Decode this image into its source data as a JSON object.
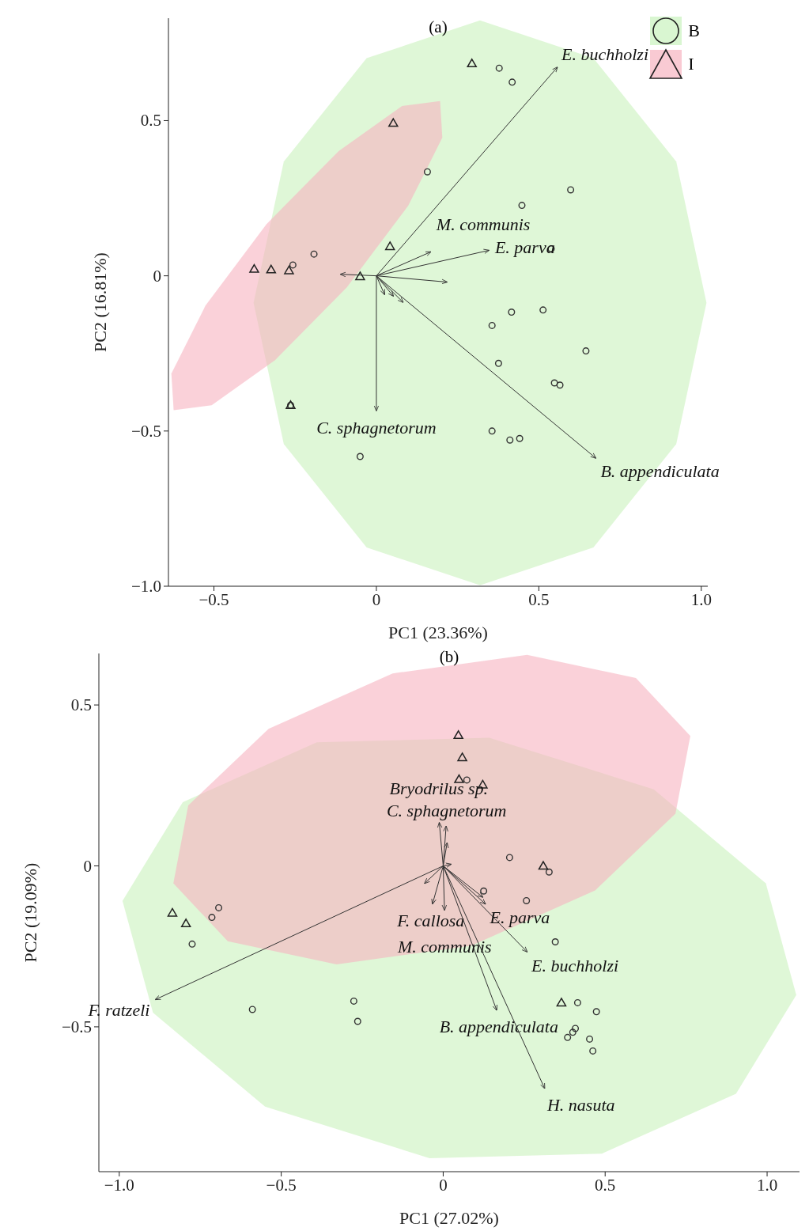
{
  "chart_data": [
    {
      "type": "scatter",
      "title": "(a)",
      "xlabel": "PC1 (23.36%)",
      "ylabel": "PC2 (16.81%)",
      "xlim": [
        -0.64,
        1.02
      ],
      "ylim": [
        -1.0,
        0.83
      ],
      "xticks": [
        {
          "value": -0.5,
          "label": "−0.5"
        },
        {
          "value": 0,
          "label": "0"
        },
        {
          "value": 0.5,
          "label": "0.5"
        },
        {
          "value": 1,
          "label": "1.0"
        }
      ],
      "yticks": [
        {
          "value": -1,
          "label": "−1.0"
        },
        {
          "value": -0.5,
          "label": "−0.5"
        },
        {
          "value": 0,
          "label": "0"
        },
        {
          "value": 0.5,
          "label": "0.5"
        }
      ],
      "grid": false,
      "legend": "top right",
      "series": [
        {
          "type": "area",
          "name": "B",
          "color": "#c9f2bd",
          "x": [
            1.016,
            0.923,
            0.668,
            0.319,
            -0.03,
            -0.285,
            -0.378,
            -0.285,
            -0.03,
            0.319,
            0.668,
            0.923
          ],
          "values": [
            -0.087,
            0.368,
            0.701,
            0.823,
            0.701,
            0.368,
            -0.087,
            -0.542,
            -0.875,
            -0.997,
            -0.875,
            -0.542
          ]
        },
        {
          "type": "area",
          "name": "I",
          "color": "#f7b3c0",
          "x": [
            0.196,
            0.079,
            -0.116,
            -0.338,
            -0.526,
            -0.631,
            -0.624,
            -0.507,
            -0.312,
            -0.091,
            0.098,
            0.203
          ],
          "values": [
            0.563,
            0.547,
            0.402,
            0.167,
            -0.096,
            -0.315,
            -0.433,
            -0.417,
            -0.272,
            -0.037,
            0.226,
            0.445
          ]
        },
        {
          "type": "line",
          "color": "#333333",
          "x": [
            0,
            0.557
          ],
          "values": [
            0,
            0.672
          ]
        },
        {
          "type": "line",
          "color": "#333333",
          "x": [
            0,
            0.346
          ],
          "values": [
            0,
            0.082
          ]
        },
        {
          "type": "line",
          "color": "#333333",
          "x": [
            0,
            0.167
          ],
          "values": [
            0,
            0.077
          ]
        },
        {
          "type": "line",
          "color": "#333333",
          "x": [
            0,
            0.0
          ],
          "values": [
            0,
            -0.434
          ]
        },
        {
          "type": "line",
          "color": "#333333",
          "x": [
            0,
            0.675
          ],
          "values": [
            0,
            -0.587
          ]
        },
        {
          "type": "line",
          "color": "#333333",
          "x": [
            0,
            -0.11
          ],
          "values": [
            0,
            0.005
          ]
        },
        {
          "type": "line",
          "color": "#333333",
          "x": [
            0,
            0.217
          ],
          "values": [
            0,
            -0.02
          ]
        },
        {
          "type": "line",
          "color": "#333333",
          "x": [
            0,
            0.025
          ],
          "values": [
            0,
            -0.06
          ]
        },
        {
          "type": "line",
          "color": "#333333",
          "x": [
            0,
            0.052
          ],
          "values": [
            0,
            -0.065
          ]
        },
        {
          "type": "line",
          "color": "#333333",
          "x": [
            0,
            0.082
          ],
          "values": [
            0,
            -0.085
          ]
        },
        {
          "type": "scatter",
          "marker": "circle",
          "color": "#333333",
          "x": [
            0.378,
            0.418,
            0.157,
            0.598,
            0.448,
            0.538,
            -0.192,
            -0.257,
            0.513,
            0.416,
            0.356,
            0.645,
            0.376,
            0.548,
            0.565,
            -0.264,
            0.356,
            0.411,
            0.441,
            -0.05
          ],
          "values": [
            0.669,
            0.624,
            0.335,
            0.277,
            0.227,
            0.087,
            0.07,
            0.035,
            -0.11,
            -0.117,
            -0.16,
            -0.242,
            -0.282,
            -0.345,
            -0.352,
            -0.417,
            -0.5,
            -0.529,
            -0.524,
            -0.582
          ]
        },
        {
          "type": "scatter",
          "marker": "triangle",
          "color": "#222222",
          "x": [
            0.294,
            0.052,
            0.042,
            -0.376,
            -0.324,
            -0.269,
            -0.05,
            -0.264
          ],
          "values": [
            0.684,
            0.492,
            0.095,
            0.022,
            0.02,
            0.017,
            -0.002,
            -0.417
          ]
        }
      ],
      "annotations": [
        {
          "text": "E. buchholzi",
          "x": 0.557,
          "y": 0.672
        },
        {
          "text": "E. parva",
          "x": 0.346,
          "y": 0.082
        },
        {
          "text": "M. communis",
          "x": 0.167,
          "y": 0.077
        },
        {
          "text": "C. sphagnetorum",
          "x": 0.0,
          "y": -0.434
        },
        {
          "text": "B. appendiculata",
          "x": 0.675,
          "y": -0.587
        }
      ]
    },
    {
      "type": "scatter",
      "title": "(b)",
      "xlabel": "PC1 (27.02%)",
      "ylabel": "PC2 (19.09%)",
      "xlim": [
        -1.063,
        1.1
      ],
      "ylim": [
        -0.95,
        0.66
      ],
      "xticks": [
        {
          "value": -1,
          "label": "−1.0"
        },
        {
          "value": -0.5,
          "label": "−0.5"
        },
        {
          "value": 0,
          "label": "0"
        },
        {
          "value": 0.5,
          "label": "0.5"
        },
        {
          "value": 1,
          "label": "1.0"
        }
      ],
      "yticks": [
        {
          "value": -0.5,
          "label": "−0.5"
        },
        {
          "value": 0,
          "label": "0"
        },
        {
          "value": 0.5,
          "label": "0.5"
        }
      ],
      "grid": false,
      "legend": false,
      "series": [
        {
          "type": "area",
          "color": "#c9f2bd",
          "x": [
            1.09,
            0.996,
            0.65,
            0.142,
            -0.39,
            -0.804,
            -0.99,
            -0.896,
            -0.55,
            -0.042,
            0.49,
            0.904
          ],
          "values": [
            -0.401,
            -0.054,
            0.238,
            0.398,
            0.384,
            0.198,
            -0.109,
            -0.456,
            -0.748,
            -0.908,
            -0.894,
            -0.708
          ]
        },
        {
          "type": "area",
          "color": "#f7b3c0",
          "x": [
            0.763,
            0.595,
            0.259,
            -0.156,
            -0.539,
            -0.787,
            -0.833,
            -0.665,
            -0.329,
            0.086,
            0.469,
            0.717
          ],
          "values": [
            0.404,
            0.584,
            0.656,
            0.598,
            0.426,
            0.188,
            -0.054,
            -0.234,
            -0.306,
            -0.248,
            -0.076,
            0.162
          ]
        },
        {
          "type": "line",
          "color": "#333333",
          "x": [
            0,
            -0.888
          ],
          "values": [
            0,
            -0.415
          ]
        },
        {
          "type": "line",
          "color": "#333333",
          "x": [
            0,
            0.313
          ],
          "values": [
            0,
            -0.691
          ]
        },
        {
          "type": "line",
          "color": "#333333",
          "x": [
            0,
            0.165
          ],
          "values": [
            0,
            -0.448
          ]
        },
        {
          "type": "line",
          "color": "#333333",
          "x": [
            0,
            0.259
          ],
          "values": [
            0,
            -0.267
          ]
        },
        {
          "type": "line",
          "color": "#333333",
          "x": [
            0,
            0.13
          ],
          "values": [
            0,
            -0.118
          ]
        },
        {
          "type": "line",
          "color": "#333333",
          "x": [
            0,
            0.004
          ],
          "values": [
            0,
            -0.137
          ]
        },
        {
          "type": "line",
          "color": "#333333",
          "x": [
            0,
            -0.033
          ],
          "values": [
            0,
            -0.118
          ]
        },
        {
          "type": "line",
          "color": "#333333",
          "x": [
            0,
            -0.012
          ],
          "values": [
            0,
            0.134
          ]
        },
        {
          "type": "line",
          "color": "#333333",
          "x": [
            0,
            0.009
          ],
          "values": [
            0,
            0.123
          ]
        },
        {
          "type": "line",
          "color": "#333333",
          "x": [
            0,
            -0.057
          ],
          "values": [
            0,
            -0.054
          ]
        },
        {
          "type": "line",
          "color": "#333333",
          "x": [
            0,
            0.122
          ],
          "values": [
            0,
            -0.097
          ]
        },
        {
          "type": "line",
          "color": "#333333",
          "x": [
            0,
            0.012
          ],
          "values": [
            0,
            0.071
          ]
        },
        {
          "type": "line",
          "color": "#333333",
          "x": [
            0,
            0.024
          ],
          "values": [
            0,
            0.005
          ]
        },
        {
          "type": "scatter",
          "marker": "circle",
          "color": "#333333",
          "x": [
            0.073,
            0.205,
            0.327,
            0.125,
            0.257,
            -0.693,
            -0.714,
            -0.775,
            0.346,
            -0.589,
            -0.276,
            -0.264,
            0.415,
            0.473,
            0.408,
            0.4,
            0.384,
            0.452,
            0.462
          ],
          "values": [
            0.267,
            0.026,
            -0.019,
            -0.078,
            -0.108,
            -0.13,
            -0.16,
            -0.243,
            -0.236,
            -0.446,
            -0.42,
            -0.483,
            -0.425,
            -0.453,
            -0.505,
            -0.517,
            -0.533,
            -0.538,
            -0.575
          ]
        },
        {
          "type": "scatter",
          "marker": "triangle",
          "color": "#222222",
          "x": [
            0.047,
            0.059,
            0.049,
            0.122,
            0.309,
            -0.836,
            -0.794,
            0.365
          ],
          "values": [
            0.406,
            0.337,
            0.269,
            0.252,
            0.0,
            -0.146,
            -0.179,
            -0.425
          ]
        }
      ],
      "annotations": [
        {
          "text": "C. sphagnetorum",
          "x": 0.009,
          "y": 0.123
        },
        {
          "text": "Bryodrilus sp.",
          "x": -0.012,
          "y": 0.134
        },
        {
          "text": "F. callosa",
          "x": -0.033,
          "y": -0.118
        },
        {
          "text": "E. parva",
          "x": 0.13,
          "y": -0.118
        },
        {
          "text": "M. communis",
          "x": 0.004,
          "y": -0.137
        },
        {
          "text": "E. buchholzi",
          "x": 0.259,
          "y": -0.267
        },
        {
          "text": "F. ratzeli",
          "x": -0.888,
          "y": -0.415
        },
        {
          "text": "B. appendiculata",
          "x": 0.165,
          "y": -0.448
        },
        {
          "text": "H. nasuta",
          "x": 0.313,
          "y": -0.691
        }
      ]
    }
  ]
}
